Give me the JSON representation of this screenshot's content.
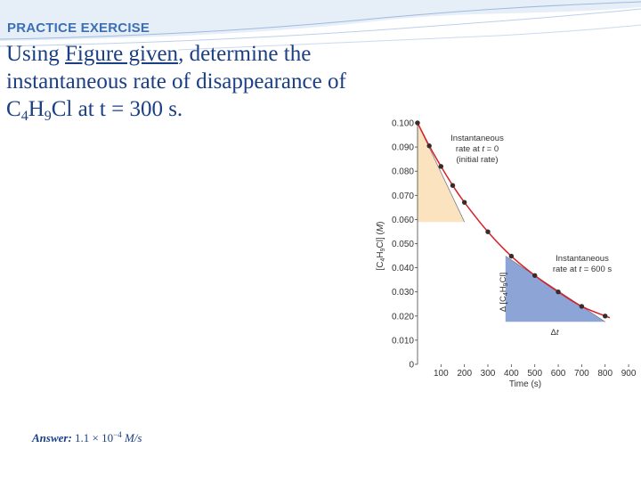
{
  "heading": "PRACTICE EXERCISE",
  "question": {
    "part1": "Using ",
    "link": "Figure given",
    "part2": ", determine the instantaneous rate of disappearance of C",
    "sub1": "4",
    "mid": "H",
    "sub2": "9",
    "part3": "Cl at t = 300 s."
  },
  "answer": {
    "label": "Answer:",
    "value": "1.1 × 10",
    "exponent": "−4",
    "unit": "M/s"
  },
  "colors": {
    "heading": "#3d6fb5",
    "question": "#1a3f84",
    "curve": "#d6202a",
    "point": "#3a2a2a",
    "tangent": "#7a7f8a",
    "initial_triangle": "#fbe3bf",
    "blue_triangle": "#8da5d6"
  },
  "chart_data": {
    "type": "scatter",
    "x": [
      0,
      50,
      100,
      150,
      200,
      300,
      400,
      500,
      600,
      700,
      800
    ],
    "y": [
      0.1,
      0.0905,
      0.082,
      0.0741,
      0.0671,
      0.0549,
      0.0448,
      0.0368,
      0.03,
      0.024,
      0.02
    ],
    "xlabel_main": "Time (s)",
    "ylabel": {
      "a": "[C",
      "s1": "4",
      "b": "H",
      "s2": "9",
      "c": "Cl] (",
      "unit": "M",
      "d": ")"
    },
    "xlim": [
      0,
      900
    ],
    "ylim": [
      0,
      0.1
    ],
    "x_ticks": [
      "100",
      "200",
      "300",
      "400",
      "500",
      "600",
      "700",
      "800",
      "900"
    ],
    "y_ticks": [
      "0",
      "0.010",
      "0.020",
      "0.030",
      "0.040",
      "0.050",
      "0.060",
      "0.070",
      "0.080",
      "0.090",
      "0.100"
    ],
    "annotation_initial": {
      "l1": "Instantaneous",
      "l2a": "rate at ",
      "l2b": "t",
      "l2c": " = 0",
      "l3": "(initial rate)"
    },
    "annotation_600": {
      "l1": "Instantaneous",
      "l2a": "rate at ",
      "l2b": "t",
      "l2c": " = 600 s"
    },
    "delta_conc": {
      "a": "Δ [C",
      "s1": "4",
      "b": "H",
      "s2": "9",
      "c": "Cl]"
    },
    "delta_t": {
      "a": "Δ",
      "b": "t"
    }
  }
}
